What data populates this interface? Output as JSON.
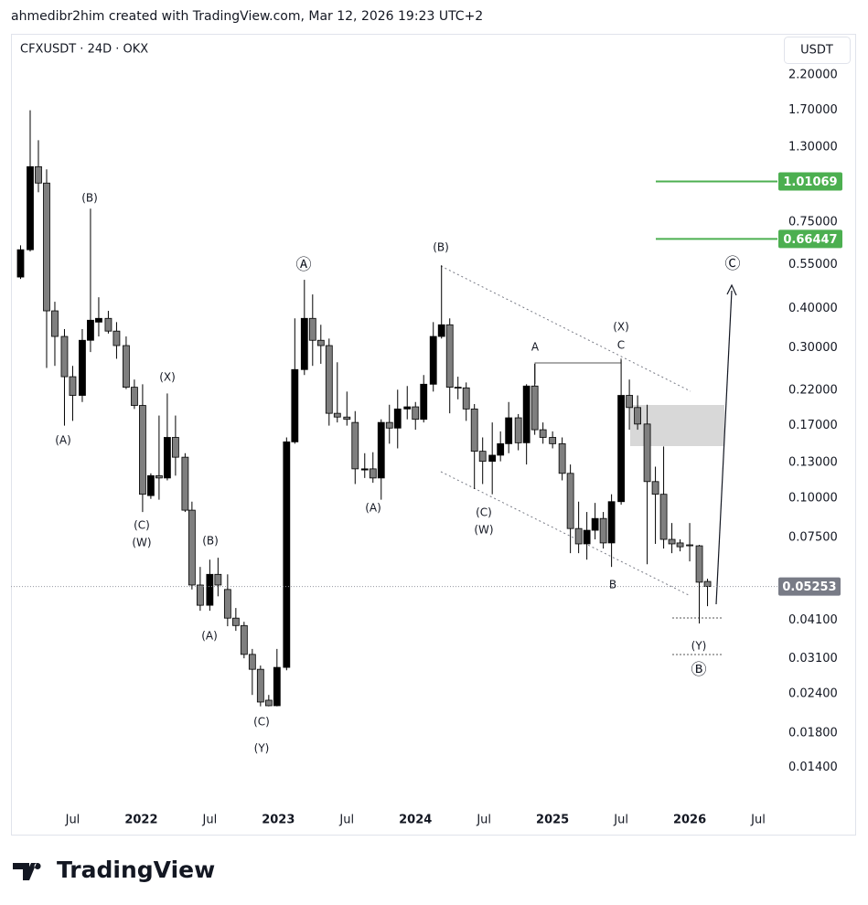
{
  "header": {
    "attribution": "ahmedibr2him created with TradingView.com, Mar 12, 2026 19:23 UTC+2",
    "logo": "TradingView"
  },
  "chart_data": {
    "type": "candlestick",
    "symbol": "CFXUSDT · 24D · OKX",
    "currency": "USDT",
    "log_scale": true,
    "grid": false,
    "up_color": "#000000",
    "down_color": "#7f7f7f",
    "wick_color": "#000000",
    "xlim": [
      2021.05,
      2026.64
    ],
    "ylim": [
      0.0107,
      2.95
    ],
    "xticks": [
      {
        "value": 2021.5,
        "label": "Jul"
      },
      2022,
      {
        "value": 2022.5,
        "label": "Jul"
      },
      2023,
      {
        "value": 2023.5,
        "label": "Jul"
      },
      2024,
      {
        "value": 2024.5,
        "label": "Jul"
      },
      2025,
      {
        "value": 2025.5,
        "label": "Jul"
      },
      2026,
      {
        "value": 2026.5,
        "label": "Jul"
      }
    ],
    "yticks": [
      {
        "value": 2.2,
        "label": "2.20000"
      },
      {
        "value": 1.7,
        "label": "1.70000"
      },
      {
        "value": 1.3,
        "label": "1.30000"
      },
      {
        "value": 0.75,
        "label": "0.75000"
      },
      {
        "value": 0.55,
        "label": "0.55000"
      },
      {
        "value": 0.4,
        "label": "0.40000"
      },
      {
        "value": 0.3,
        "label": "0.30000"
      },
      {
        "value": 0.22,
        "label": "0.22000"
      },
      {
        "value": 0.17,
        "label": "0.17000"
      },
      {
        "value": 0.13,
        "label": "0.13000"
      },
      {
        "value": 0.1,
        "label": "0.10000"
      },
      {
        "value": 0.075,
        "label": "0.07500"
      },
      {
        "value": 0.041,
        "label": "0.04100"
      },
      {
        "value": 0.031,
        "label": "0.03100"
      },
      {
        "value": 0.024,
        "label": "0.02400"
      },
      {
        "value": 0.018,
        "label": "0.01800"
      },
      {
        "value": 0.014,
        "label": "0.01400"
      }
    ],
    "x": [
      2021.12,
      2021.19,
      2021.25,
      2021.31,
      2021.37,
      2021.44,
      2021.5,
      2021.57,
      2021.63,
      2021.69,
      2021.76,
      2021.82,
      2021.89,
      2021.95,
      2022.01,
      2022.07,
      2022.13,
      2022.19,
      2022.25,
      2022.32,
      2022.37,
      2022.43,
      2022.5,
      2022.56,
      2022.63,
      2022.69,
      2022.75,
      2022.81,
      2022.87,
      2022.93,
      2022.99,
      2023.06,
      2023.12,
      2023.19,
      2023.25,
      2023.31,
      2023.37,
      2023.43,
      2023.5,
      2023.56,
      2023.63,
      2023.69,
      2023.75,
      2023.81,
      2023.87,
      2023.94,
      2024.0,
      2024.06,
      2024.13,
      2024.19,
      2024.25,
      2024.31,
      2024.37,
      2024.43,
      2024.49,
      2024.56,
      2024.62,
      2024.68,
      2024.75,
      2024.81,
      2024.87,
      2024.93,
      2025.0,
      2025.07,
      2025.13,
      2025.19,
      2025.25,
      2025.31,
      2025.37,
      2025.43,
      2025.5,
      2025.56,
      2025.62,
      2025.69,
      2025.75,
      2025.81,
      2025.87,
      2025.93,
      2026.0,
      2026.07,
      2026.13
    ],
    "open": [
      0.503,
      0.614,
      1.126,
      0.999,
      0.393,
      0.326,
      0.243,
      0.212,
      0.317,
      0.362,
      0.372,
      0.339,
      0.305,
      0.225,
      0.197,
      0.102,
      0.118,
      0.116,
      0.156,
      0.135,
      0.0917,
      0.0531,
      0.0458,
      0.0574,
      0.0514,
      0.0417,
      0.0395,
      0.032,
      0.0287,
      0.0229,
      0.022,
      0.0291,
      0.151,
      0.256,
      0.372,
      0.317,
      0.305,
      0.186,
      0.181,
      0.174,
      0.123,
      0.124,
      0.116,
      0.174,
      0.167,
      0.192,
      0.195,
      0.178,
      0.23,
      0.326,
      0.355,
      0.225,
      0.224,
      0.192,
      0.141,
      0.131,
      0.137,
      0.149,
      0.18,
      0.15,
      0.227,
      0.165,
      0.156,
      0.149,
      0.12,
      0.0802,
      0.0717,
      0.0792,
      0.0863,
      0.0722,
      0.0976,
      0.212,
      0.194,
      0.172,
      0.113,
      0.103,
      0.0741,
      0.0722,
      0.0712,
      0.0707,
      0.0545
    ],
    "high": [
      0.634,
      1.7,
      1.366,
      1.104,
      0.42,
      0.344,
      0.263,
      0.344,
      0.829,
      0.434,
      0.393,
      0.362,
      0.326,
      0.238,
      0.23,
      0.12,
      0.183,
      0.215,
      0.183,
      0.139,
      0.0976,
      0.0606,
      0.0639,
      0.0648,
      0.0574,
      0.0449,
      0.0406,
      0.0333,
      0.0295,
      0.0238,
      0.0333,
      0.156,
      0.372,
      0.493,
      0.443,
      0.355,
      0.321,
      0.27,
      0.218,
      0.189,
      0.139,
      0.14,
      0.178,
      0.198,
      0.221,
      0.227,
      0.202,
      0.246,
      0.362,
      0.548,
      0.372,
      0.243,
      0.233,
      0.199,
      0.156,
      0.174,
      0.163,
      0.202,
      0.185,
      0.23,
      0.267,
      0.174,
      0.163,
      0.156,
      0.128,
      0.0976,
      0.0905,
      0.0967,
      0.0905,
      0.103,
      0.275,
      0.238,
      0.212,
      0.198,
      0.126,
      0.146,
      0.0835,
      0.0741,
      0.0835,
      0.0712,
      0.0556
    ],
    "low": [
      0.496,
      0.606,
      0.934,
      0.259,
      0.263,
      0.17,
      0.176,
      0.202,
      0.291,
      0.326,
      0.333,
      0.277,
      0.222,
      0.192,
      0.0905,
      0.0996,
      0.099,
      0.114,
      0.118,
      0.0905,
      0.0514,
      0.044,
      0.044,
      0.0489,
      0.0393,
      0.038,
      0.0311,
      0.0238,
      0.0219,
      0.0219,
      0.0219,
      0.0285,
      0.149,
      0.246,
      0.263,
      0.267,
      0.17,
      0.174,
      0.17,
      0.111,
      0.116,
      0.112,
      0.099,
      0.149,
      0.144,
      0.178,
      0.165,
      0.174,
      0.218,
      0.321,
      0.186,
      0.206,
      0.176,
      0.107,
      0.111,
      0.103,
      0.131,
      0.139,
      0.142,
      0.128,
      0.159,
      0.149,
      0.144,
      0.114,
      0.067,
      0.067,
      0.0639,
      0.0741,
      0.0693,
      0.0606,
      0.0954,
      0.165,
      0.165,
      0.0618,
      0.0717,
      0.0693,
      0.067,
      0.0679,
      0.0631,
      0.0401,
      0.0455
    ],
    "close": [
      0.614,
      1.126,
      0.999,
      0.393,
      0.326,
      0.243,
      0.212,
      0.317,
      0.367,
      0.372,
      0.339,
      0.305,
      0.225,
      0.197,
      0.103,
      0.118,
      0.116,
      0.156,
      0.135,
      0.0917,
      0.0531,
      0.0458,
      0.0574,
      0.0531,
      0.0417,
      0.0395,
      0.032,
      0.0287,
      0.0226,
      0.022,
      0.0291,
      0.151,
      0.256,
      0.372,
      0.317,
      0.305,
      0.186,
      0.181,
      0.178,
      0.124,
      0.124,
      0.116,
      0.174,
      0.167,
      0.192,
      0.195,
      0.178,
      0.23,
      0.326,
      0.355,
      0.225,
      0.224,
      0.192,
      0.141,
      0.131,
      0.137,
      0.149,
      0.18,
      0.15,
      0.227,
      0.165,
      0.156,
      0.149,
      0.12,
      0.0802,
      0.0717,
      0.0792,
      0.0863,
      0.0722,
      0.0976,
      0.212,
      0.194,
      0.172,
      0.113,
      0.103,
      0.0741,
      0.0717,
      0.0702,
      0.0707,
      0.0542,
      0.05253
    ],
    "levels": [
      {
        "value": 1.01069,
        "color": "#4caf50"
      },
      {
        "value": 0.66447,
        "color": "#4caf50"
      }
    ],
    "last_price": 0.05253,
    "last_price_color": "#787b86",
    "annotations": [
      "(B)",
      "(A)",
      "(X)",
      "(C)",
      "(W)",
      "(B)",
      "(A)",
      "(C)",
      "(Y)",
      "Ⓐ",
      "(B)",
      "(A)",
      "(C)",
      "(W)",
      "A",
      "(X)",
      "C",
      "B",
      "(Y)",
      "Ⓑ",
      "Ⓒ"
    ]
  }
}
